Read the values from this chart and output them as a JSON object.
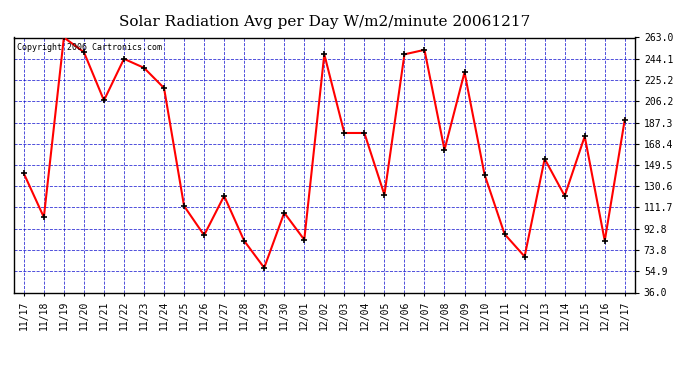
{
  "title": "Solar Radiation Avg per Day W/m2/minute 20061217",
  "copyright_text": "Copyright 2006 Cartronics.com",
  "x_labels": [
    "11/17",
    "11/18",
    "11/19",
    "11/20",
    "11/21",
    "11/22",
    "11/23",
    "11/24",
    "11/25",
    "11/26",
    "11/27",
    "11/28",
    "11/29",
    "11/30",
    "12/01",
    "12/02",
    "12/03",
    "12/04",
    "12/05",
    "12/06",
    "12/07",
    "12/08",
    "12/09",
    "12/10",
    "12/11",
    "12/12",
    "12/13",
    "12/14",
    "12/15",
    "12/16",
    "12/17"
  ],
  "y_values": [
    142,
    103,
    263,
    250,
    207,
    244,
    236,
    218,
    113,
    87,
    122,
    82,
    58,
    107,
    83,
    248,
    178,
    178,
    123,
    248,
    252,
    163,
    232,
    141,
    88,
    68,
    155,
    122,
    175,
    82,
    190
  ],
  "y_ticks": [
    36.0,
    54.9,
    73.8,
    92.8,
    111.7,
    130.6,
    149.5,
    168.4,
    187.3,
    206.2,
    225.2,
    244.1,
    263.0
  ],
  "y_min": 36.0,
  "y_max": 263.0,
  "line_color": "#ff0000",
  "marker_color": "#000000",
  "bg_color": "#ffffff",
  "plot_bg_color": "#ffffff",
  "grid_color": "#0000cc",
  "title_fontsize": 11,
  "axis_label_fontsize": 7,
  "copyright_fontsize": 6
}
